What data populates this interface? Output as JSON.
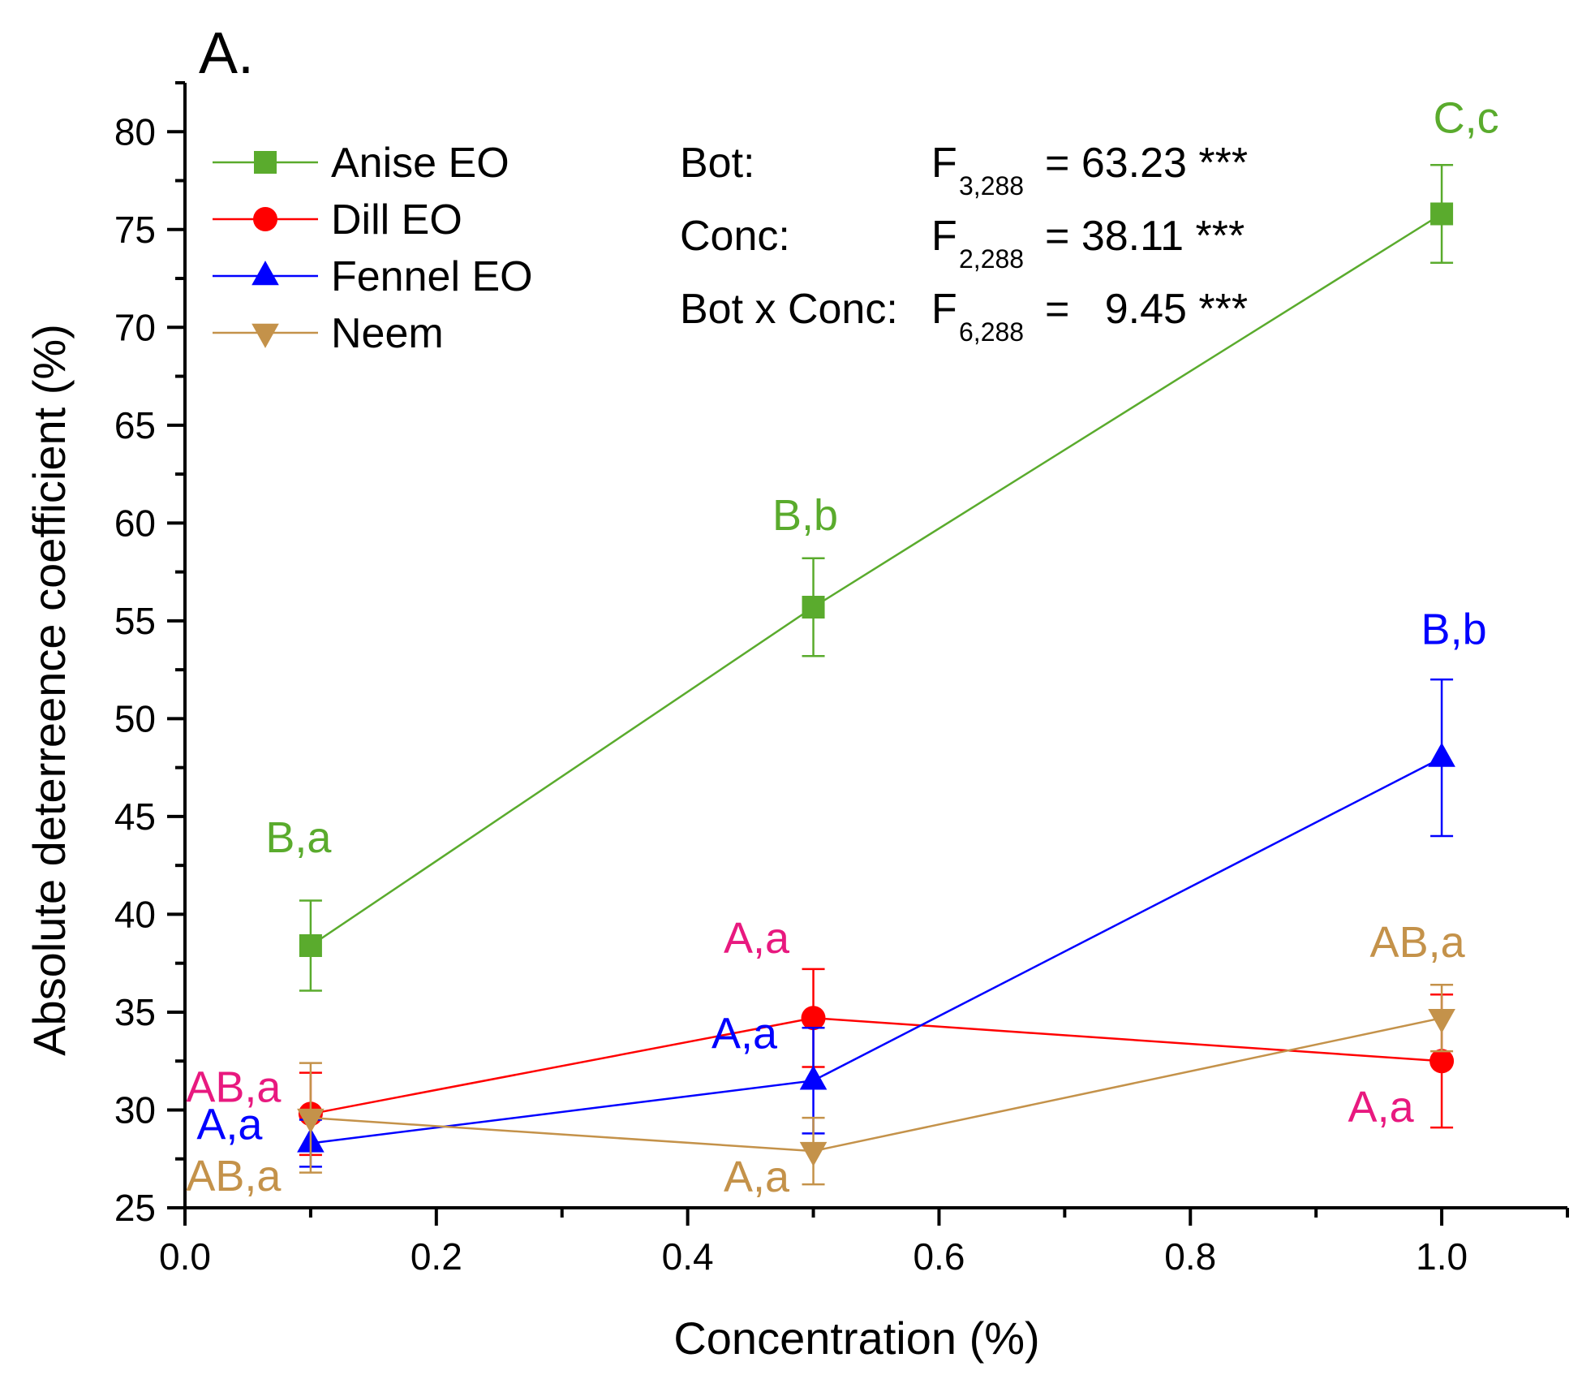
{
  "panel_label": "A.",
  "chart_data": {
    "type": "line",
    "title": "",
    "xlabel": "Concentration (%)",
    "ylabel": "Absolute deterreence coefficient (%)",
    "xlim": [
      0.0,
      1.1
    ],
    "ylim": [
      25,
      82.5
    ],
    "x_ticks": [
      0.0,
      0.2,
      0.4,
      0.6,
      0.8,
      1.0
    ],
    "x_tick_labels": [
      "0.0",
      "0.2",
      "0.4",
      "0.6",
      "0.8",
      "1.0"
    ],
    "y_ticks": [
      25,
      30,
      35,
      40,
      45,
      50,
      55,
      60,
      65,
      70,
      75,
      80
    ],
    "y_tick_labels": [
      "25",
      "30",
      "35",
      "40",
      "45",
      "50",
      "55",
      "60",
      "65",
      "70",
      "75",
      "80"
    ],
    "x": [
      0.1,
      0.5,
      1.0
    ],
    "legend_position": "top-left",
    "series": [
      {
        "name": "Anise EO",
        "color": "#5aab2d",
        "marker": "square",
        "values": [
          38.4,
          55.7,
          75.8
        ],
        "errors": [
          2.3,
          2.5,
          2.5
        ],
        "letters": [
          "B,a",
          "B,b",
          "C,c"
        ],
        "letter_color": "#5aab2d"
      },
      {
        "name": "Dill EO",
        "color": "#ff0000",
        "marker": "circle",
        "values": [
          29.8,
          34.7,
          32.5
        ],
        "errors": [
          2.1,
          2.5,
          3.4
        ],
        "letters": [
          "AB,a",
          "A,a",
          "A,a"
        ],
        "letter_color": "#e8197f"
      },
      {
        "name": "Fennel EO",
        "color": "#0000ff",
        "marker": "triangle-up",
        "values": [
          28.3,
          31.5,
          48.0
        ],
        "errors": [
          1.2,
          2.7,
          4.0
        ],
        "letters": [
          "A,a",
          "A,a",
          "B,b"
        ],
        "letter_color": "#0000ff"
      },
      {
        "name": "Neem",
        "color": "#c4924a",
        "marker": "triangle-down",
        "values": [
          29.6,
          27.9,
          34.7
        ],
        "errors": [
          2.8,
          1.7,
          1.7
        ],
        "letters": [
          "AB,a",
          "A,a",
          "AB,a"
        ],
        "letter_color": "#c4924a"
      }
    ],
    "stats": [
      {
        "label": "Bot:",
        "f_sub": "3,288",
        "value": "= 63.23 ***"
      },
      {
        "label": "Conc:",
        "f_sub": "2,288",
        "value": "= 38.11 ***"
      },
      {
        "label": "Bot x Conc:",
        "f_sub": "6,288",
        "value": "=   9.45 ***"
      }
    ],
    "stat_symbol": "F"
  }
}
